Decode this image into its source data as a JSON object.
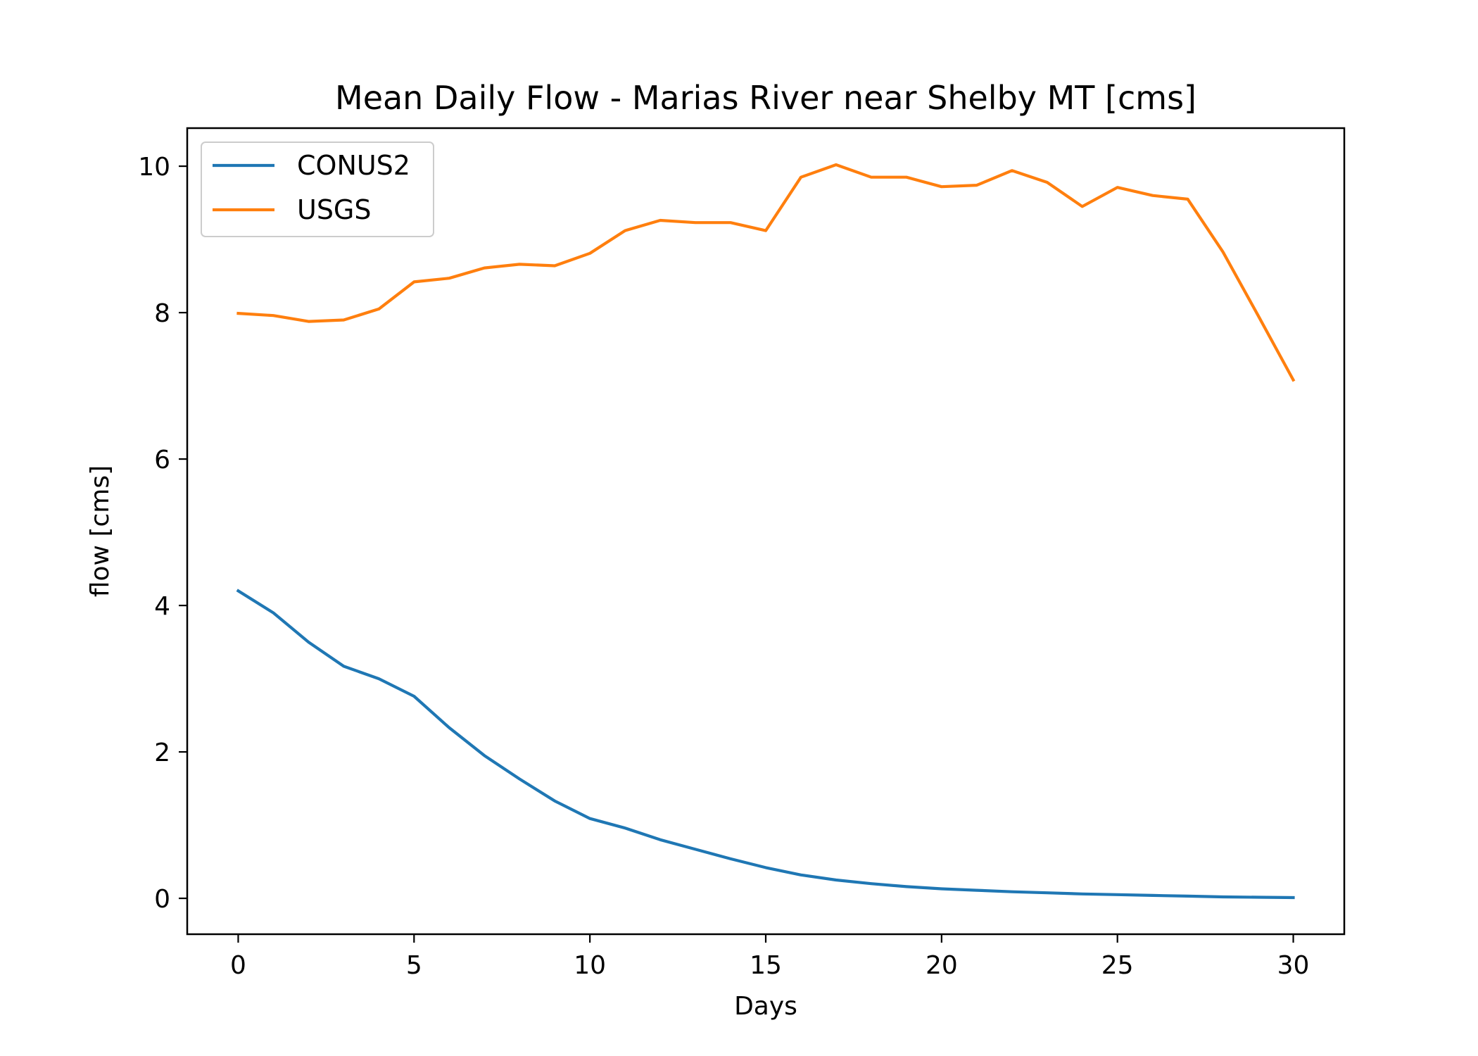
{
  "chart_data": {
    "type": "line",
    "title": "Mean Daily Flow - Marias River near Shelby MT [cms]",
    "xlabel": "Days",
    "ylabel": "flow [cms]",
    "xlim": [
      -1.45,
      31.45
    ],
    "ylim": [
      -0.49,
      10.52
    ],
    "xticks": [
      0,
      5,
      10,
      15,
      20,
      25,
      30
    ],
    "yticks": [
      0,
      2,
      4,
      6,
      8,
      10
    ],
    "grid": false,
    "legend_position": "top-left",
    "x": [
      0,
      1,
      2,
      3,
      4,
      5,
      6,
      7,
      8,
      9,
      10,
      11,
      12,
      13,
      14,
      15,
      16,
      17,
      18,
      19,
      20,
      21,
      22,
      23,
      24,
      25,
      26,
      27,
      28,
      29,
      30
    ],
    "series": [
      {
        "name": "CONUS2",
        "color": "#1f77b4",
        "values": [
          4.2,
          3.9,
          3.5,
          3.17,
          3.0,
          2.76,
          2.33,
          1.95,
          1.63,
          1.33,
          1.09,
          0.96,
          0.8,
          0.67,
          0.54,
          0.42,
          0.32,
          0.25,
          0.2,
          0.16,
          0.13,
          0.11,
          0.09,
          0.075,
          0.06,
          0.05,
          0.04,
          0.03,
          0.02,
          0.015,
          0.01
        ]
      },
      {
        "name": "USGS",
        "color": "#ff7f0e",
        "values": [
          7.99,
          7.96,
          7.88,
          7.9,
          8.05,
          8.42,
          8.47,
          8.61,
          8.66,
          8.64,
          8.81,
          9.12,
          9.26,
          9.23,
          9.23,
          9.12,
          9.85,
          10.02,
          9.85,
          9.85,
          9.72,
          9.74,
          9.94,
          9.78,
          9.45,
          9.71,
          9.6,
          9.55,
          8.83,
          7.96,
          7.08
        ]
      }
    ]
  }
}
